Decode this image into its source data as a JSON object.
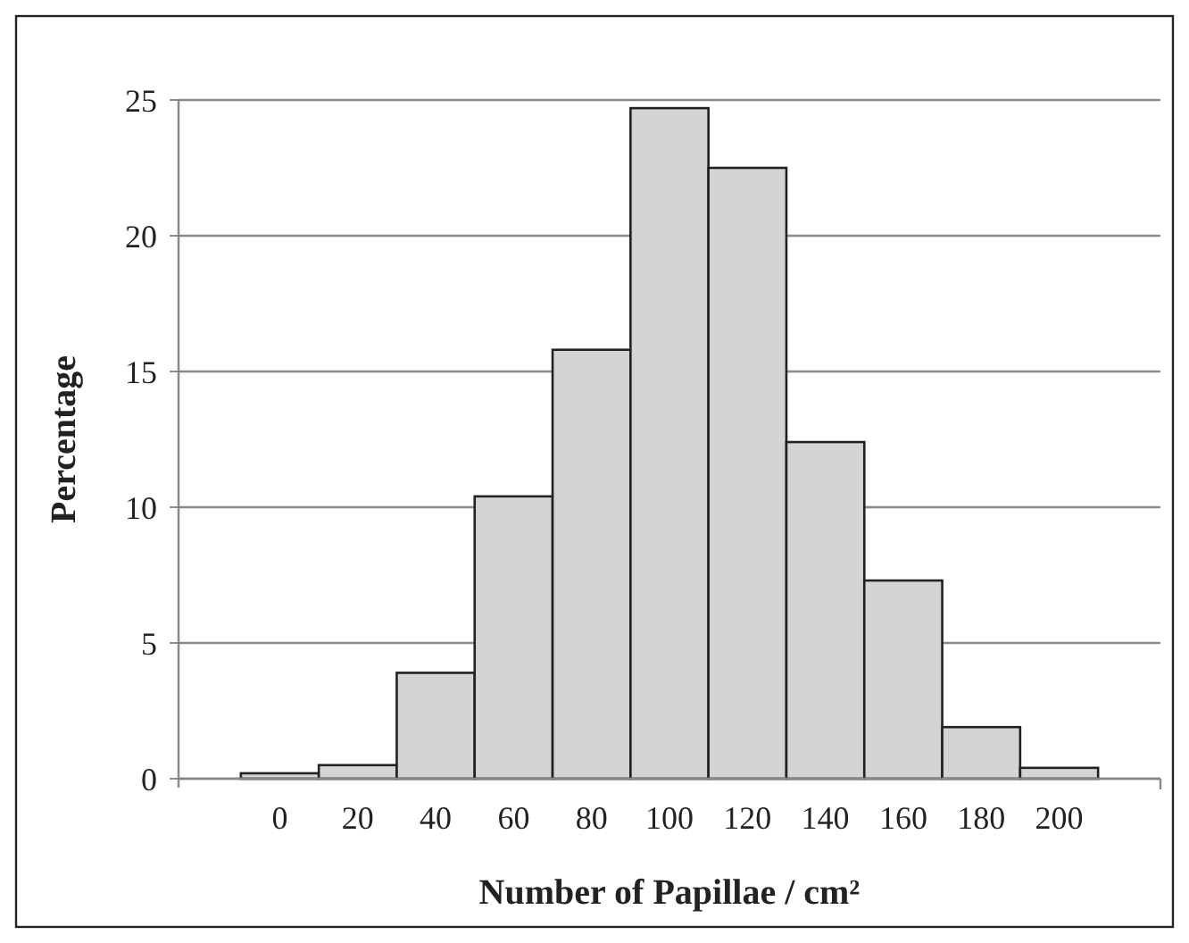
{
  "chart_data": {
    "type": "bar",
    "xlabel": "Number of Papillae / cm²",
    "ylabel": "Percentage",
    "categories": [
      "0",
      "20",
      "40",
      "60",
      "80",
      "100",
      "120",
      "140",
      "160",
      "180",
      "200"
    ],
    "values": [
      0.2,
      0.5,
      3.9,
      10.4,
      15.8,
      24.7,
      22.5,
      12.4,
      7.3,
      1.9,
      0.4
    ],
    "color": "#d3d4d6",
    "ylim": [
      0,
      25
    ],
    "yticks": [
      0,
      5,
      10,
      15,
      20,
      25
    ],
    "grid": "y"
  }
}
